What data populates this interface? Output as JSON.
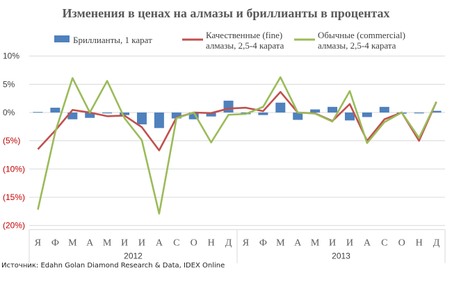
{
  "chart_data": {
    "type": "bar+line",
    "title": "Изменения в ценах на алмазы и бриллианты в процентах",
    "categories": [
      "Я",
      "Ф",
      "М",
      "А",
      "М",
      "И",
      "И",
      "А",
      "С",
      "О",
      "Н",
      "Д",
      "Я",
      "Ф",
      "М",
      "А",
      "М",
      "И",
      "И",
      "А",
      "С",
      "О",
      "Н",
      "Д"
    ],
    "year_labels": [
      "2012",
      "2013"
    ],
    "yticks": [
      10,
      5,
      0,
      -5,
      -10,
      -15,
      -20
    ],
    "ytick_labels": [
      "10%",
      "5%",
      "0%",
      "(5%)",
      "(10%)",
      "(15%)",
      "(20%)"
    ],
    "ylim": [
      -20,
      10
    ],
    "grid": true,
    "legend": "top",
    "series": [
      {
        "name": "Бриллианты, 1 карат",
        "type": "bar",
        "color": "#4f81bd",
        "values": [
          0.1,
          0.85,
          -1.2,
          -0.95,
          -0.15,
          -0.45,
          -2.1,
          -2.75,
          -1.05,
          -1.2,
          -0.7,
          2.1,
          -0.3,
          -0.45,
          1.75,
          -1.3,
          0.55,
          1.0,
          -1.4,
          -0.8,
          1.0,
          -0.2,
          -0.15,
          0.3
        ]
      },
      {
        "name": "Качественные (fine) алмазы, 2,5-4 карата",
        "name_lines": [
          "Качественные (fine)",
          "алмазы, 2,5-4 карата"
        ],
        "type": "line",
        "color": "#c0504d",
        "values": [
          -6.5,
          -3.2,
          0.45,
          0,
          -0.65,
          -0.55,
          -2.6,
          -6.7,
          -0.9,
          0,
          -0.1,
          0.7,
          0.85,
          0.25,
          3.65,
          0,
          -0.15,
          -1.5,
          1.5,
          -5.0,
          -1.2,
          0,
          -5.0,
          1.9
        ]
      },
      {
        "name": "Обычные (commercial) алмазы, 2,5-4 карата",
        "name_lines": [
          "Обычные (commercial)",
          "алмазы, 2,5-4 карата"
        ],
        "type": "line",
        "color": "#9bbb59",
        "values": [
          -17.2,
          -3.5,
          6.1,
          0,
          5.6,
          -1.0,
          -4.9,
          -17.9,
          -1.0,
          0,
          -5.3,
          -0.4,
          -0.25,
          1.0,
          6.25,
          0,
          -0.2,
          -1.6,
          3.8,
          -5.4,
          -1.7,
          0,
          -4.5,
          1.9
        ]
      }
    ],
    "negative_tick_color": "#c00000"
  },
  "source": "Источник: Edahn Golan Diamond Research & Data, IDEX Online"
}
